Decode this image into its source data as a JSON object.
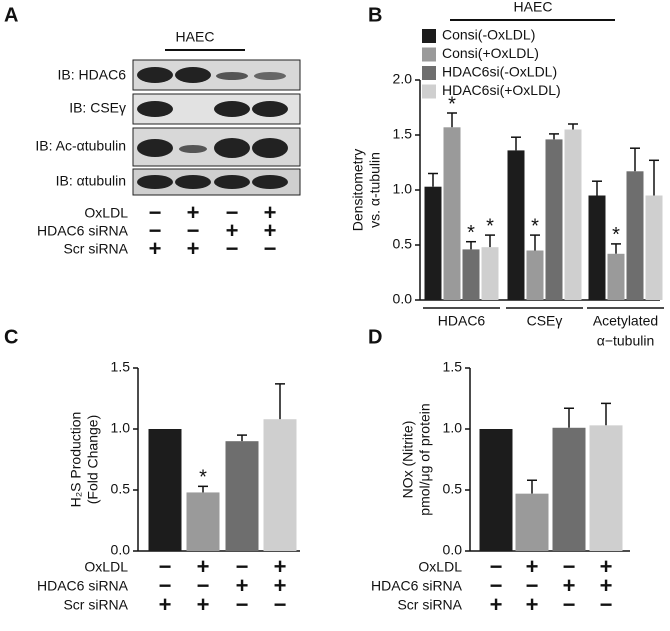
{
  "panel_a": {
    "letter": "A",
    "group": "HAEC",
    "blots": [
      "IB: HDAC6",
      "IB: CSEγ",
      "IB: Ac-αtubulin",
      "IB: αtubulin"
    ],
    "conditions": [
      {
        "label": "OxLDL",
        "values": [
          "−",
          "+",
          "−",
          "+"
        ]
      },
      {
        "label": "HDAC6 siRNA",
        "values": [
          "−",
          "−",
          "+",
          "+"
        ]
      },
      {
        "label": "Scr siRNA",
        "values": [
          "+",
          "+",
          "−",
          "−"
        ]
      }
    ]
  },
  "chart_data": [
    {
      "type": "grouped_bar",
      "letter": "B",
      "group": "HAEC",
      "ylabel": [
        "Densitometry",
        "vs. α-tubulin"
      ],
      "categories": [
        "HDAC6",
        "CSEγ",
        [
          "Acetylated",
          "α−tubulin"
        ]
      ],
      "ylim": [
        0,
        2
      ],
      "yticks": [
        {
          "value": 0,
          "label": "0.0"
        },
        {
          "value": 0.5,
          "label": "0.5"
        },
        {
          "value": 1,
          "label": "1.0"
        },
        {
          "value": 1.5,
          "label": "1.5"
        },
        {
          "value": 2,
          "label": "2.0"
        }
      ],
      "series": [
        {
          "name": "Consi(-OxLDL)",
          "color": "#1c1c1c",
          "values": [
            1.03,
            1.36,
            0.95
          ],
          "errors": [
            0.12,
            0.12,
            0.13
          ],
          "markers": [
            null,
            null,
            null
          ]
        },
        {
          "name": "Consi(+OxLDL)",
          "color": "#9a9a9a",
          "values": [
            1.57,
            0.45,
            0.42
          ],
          "errors": [
            0.13,
            0.14,
            0.09
          ],
          "markers": [
            "*",
            "*",
            "*"
          ]
        },
        {
          "name": "HDAC6si(-OxLDL)",
          "color": "#6e6e6e",
          "values": [
            0.46,
            1.46,
            1.17
          ],
          "errors": [
            0.07,
            0.05,
            0.21
          ],
          "markers": [
            "*",
            null,
            null
          ]
        },
        {
          "name": "HDAC6si(+OxLDL)",
          "color": "#cfcfcf",
          "values": [
            0.48,
            1.55,
            0.95
          ],
          "errors": [
            0.11,
            0.05,
            0.32
          ],
          "markers": [
            "*",
            null,
            null
          ]
        }
      ]
    },
    {
      "type": "bar",
      "letter": "C",
      "ylabel": [
        "H₂S Production",
        "(Fold Change)"
      ],
      "ylim": [
        0,
        1.5
      ],
      "yticks": [
        {
          "value": 0,
          "label": "0.0"
        },
        {
          "value": 0.5,
          "label": "0.5"
        },
        {
          "value": 1,
          "label": "1.0"
        },
        {
          "value": 1.5,
          "label": "1.5"
        }
      ],
      "values": [
        1.0,
        0.48,
        0.9,
        1.08
      ],
      "errors": [
        0,
        0.05,
        0.05,
        0.29
      ],
      "markers": [
        null,
        "*",
        null,
        null
      ],
      "colors": [
        "#1c1c1c",
        "#9a9a9a",
        "#6e6e6e",
        "#cfcfcf"
      ],
      "conditions": [
        {
          "label": "OxLDL",
          "values": [
            "−",
            "+",
            "−",
            "+"
          ]
        },
        {
          "label": "HDAC6 siRNA",
          "values": [
            "−",
            "−",
            "+",
            "+"
          ]
        },
        {
          "label": "Scr siRNA",
          "values": [
            "+",
            "+",
            "−",
            "−"
          ]
        }
      ]
    },
    {
      "type": "bar",
      "letter": "D",
      "ylabel": [
        "NOx (Nitrite)",
        "pmol/μg of protein"
      ],
      "ylim": [
        0,
        1.5
      ],
      "yticks": [
        {
          "value": 0,
          "label": "0.0"
        },
        {
          "value": 0.5,
          "label": "0.5"
        },
        {
          "value": 1,
          "label": "1.0"
        },
        {
          "value": 1.5,
          "label": "1.5"
        }
      ],
      "values": [
        1.0,
        0.47,
        1.01,
        1.03
      ],
      "errors": [
        0,
        0.11,
        0.16,
        0.18
      ],
      "markers": [
        null,
        null,
        null,
        null
      ],
      "colors": [
        "#1c1c1c",
        "#9a9a9a",
        "#6e6e6e",
        "#cfcfcf"
      ],
      "conditions": [
        {
          "label": "OxLDL",
          "values": [
            "−",
            "+",
            "−",
            "+"
          ]
        },
        {
          "label": "HDAC6 siRNA",
          "values": [
            "−",
            "−",
            "+",
            "+"
          ]
        },
        {
          "label": "Scr siRNA",
          "values": [
            "+",
            "+",
            "−",
            "−"
          ]
        }
      ]
    }
  ]
}
